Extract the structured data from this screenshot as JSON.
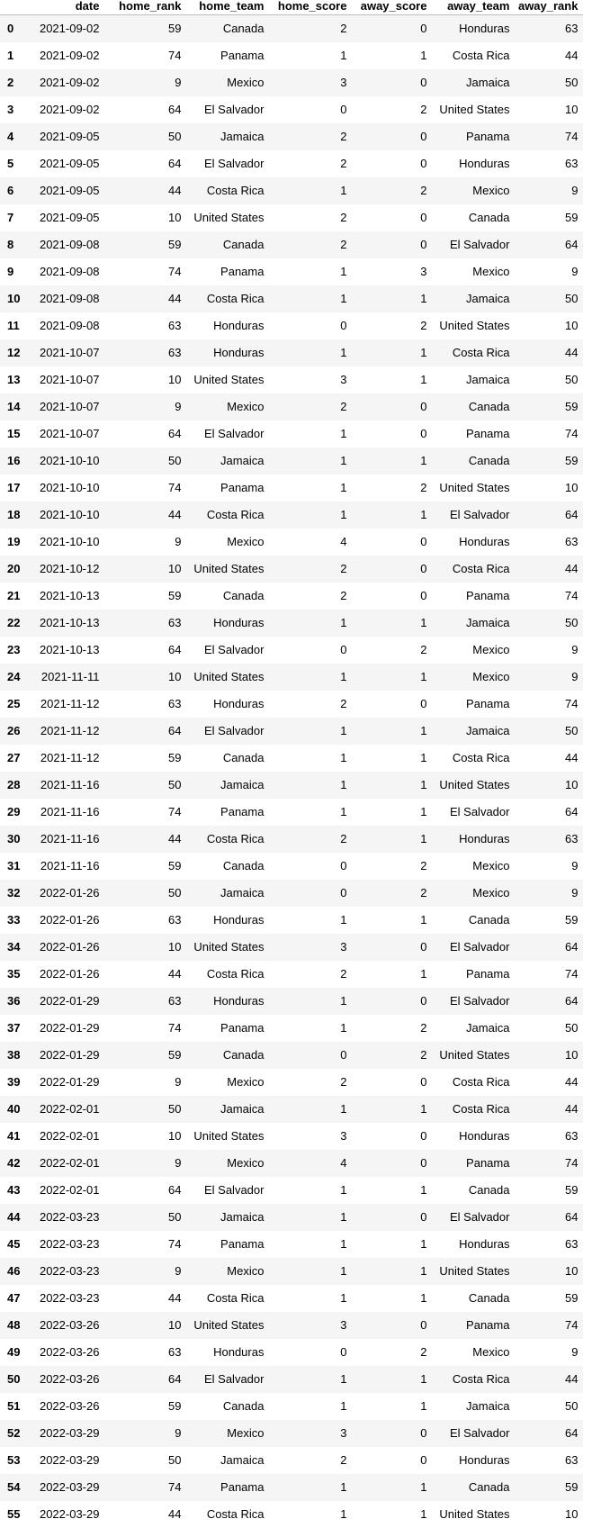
{
  "columns": [
    "date",
    "home_rank",
    "home_team",
    "home_score",
    "away_score",
    "away_team",
    "away_rank"
  ],
  "rows": [
    [
      "0",
      "2021-09-02",
      "59",
      "Canada",
      "2",
      "0",
      "Honduras",
      "63"
    ],
    [
      "1",
      "2021-09-02",
      "74",
      "Panama",
      "1",
      "1",
      "Costa Rica",
      "44"
    ],
    [
      "2",
      "2021-09-02",
      "9",
      "Mexico",
      "3",
      "0",
      "Jamaica",
      "50"
    ],
    [
      "3",
      "2021-09-02",
      "64",
      "El Salvador",
      "0",
      "2",
      "United States",
      "10"
    ],
    [
      "4",
      "2021-09-05",
      "50",
      "Jamaica",
      "2",
      "0",
      "Panama",
      "74"
    ],
    [
      "5",
      "2021-09-05",
      "64",
      "El Salvador",
      "2",
      "0",
      "Honduras",
      "63"
    ],
    [
      "6",
      "2021-09-05",
      "44",
      "Costa Rica",
      "1",
      "2",
      "Mexico",
      "9"
    ],
    [
      "7",
      "2021-09-05",
      "10",
      "United States",
      "2",
      "0",
      "Canada",
      "59"
    ],
    [
      "8",
      "2021-09-08",
      "59",
      "Canada",
      "2",
      "0",
      "El Salvador",
      "64"
    ],
    [
      "9",
      "2021-09-08",
      "74",
      "Panama",
      "1",
      "3",
      "Mexico",
      "9"
    ],
    [
      "10",
      "2021-09-08",
      "44",
      "Costa Rica",
      "1",
      "1",
      "Jamaica",
      "50"
    ],
    [
      "11",
      "2021-09-08",
      "63",
      "Honduras",
      "0",
      "2",
      "United States",
      "10"
    ],
    [
      "12",
      "2021-10-07",
      "63",
      "Honduras",
      "1",
      "1",
      "Costa Rica",
      "44"
    ],
    [
      "13",
      "2021-10-07",
      "10",
      "United States",
      "3",
      "1",
      "Jamaica",
      "50"
    ],
    [
      "14",
      "2021-10-07",
      "9",
      "Mexico",
      "2",
      "0",
      "Canada",
      "59"
    ],
    [
      "15",
      "2021-10-07",
      "64",
      "El Salvador",
      "1",
      "0",
      "Panama",
      "74"
    ],
    [
      "16",
      "2021-10-10",
      "50",
      "Jamaica",
      "1",
      "1",
      "Canada",
      "59"
    ],
    [
      "17",
      "2021-10-10",
      "74",
      "Panama",
      "1",
      "2",
      "United States",
      "10"
    ],
    [
      "18",
      "2021-10-10",
      "44",
      "Costa Rica",
      "1",
      "1",
      "El Salvador",
      "64"
    ],
    [
      "19",
      "2021-10-10",
      "9",
      "Mexico",
      "4",
      "0",
      "Honduras",
      "63"
    ],
    [
      "20",
      "2021-10-12",
      "10",
      "United States",
      "2",
      "0",
      "Costa Rica",
      "44"
    ],
    [
      "21",
      "2021-10-13",
      "59",
      "Canada",
      "2",
      "0",
      "Panama",
      "74"
    ],
    [
      "22",
      "2021-10-13",
      "63",
      "Honduras",
      "1",
      "1",
      "Jamaica",
      "50"
    ],
    [
      "23",
      "2021-10-13",
      "64",
      "El Salvador",
      "0",
      "2",
      "Mexico",
      "9"
    ],
    [
      "24",
      "2021-11-11",
      "10",
      "United States",
      "1",
      "1",
      "Mexico",
      "9"
    ],
    [
      "25",
      "2021-11-12",
      "63",
      "Honduras",
      "2",
      "0",
      "Panama",
      "74"
    ],
    [
      "26",
      "2021-11-12",
      "64",
      "El Salvador",
      "1",
      "1",
      "Jamaica",
      "50"
    ],
    [
      "27",
      "2021-11-12",
      "59",
      "Canada",
      "1",
      "1",
      "Costa Rica",
      "44"
    ],
    [
      "28",
      "2021-11-16",
      "50",
      "Jamaica",
      "1",
      "1",
      "United States",
      "10"
    ],
    [
      "29",
      "2021-11-16",
      "74",
      "Panama",
      "1",
      "1",
      "El Salvador",
      "64"
    ],
    [
      "30",
      "2021-11-16",
      "44",
      "Costa Rica",
      "2",
      "1",
      "Honduras",
      "63"
    ],
    [
      "31",
      "2021-11-16",
      "59",
      "Canada",
      "0",
      "2",
      "Mexico",
      "9"
    ],
    [
      "32",
      "2022-01-26",
      "50",
      "Jamaica",
      "0",
      "2",
      "Mexico",
      "9"
    ],
    [
      "33",
      "2022-01-26",
      "63",
      "Honduras",
      "1",
      "1",
      "Canada",
      "59"
    ],
    [
      "34",
      "2022-01-26",
      "10",
      "United States",
      "3",
      "0",
      "El Salvador",
      "64"
    ],
    [
      "35",
      "2022-01-26",
      "44",
      "Costa Rica",
      "2",
      "1",
      "Panama",
      "74"
    ],
    [
      "36",
      "2022-01-29",
      "63",
      "Honduras",
      "1",
      "0",
      "El Salvador",
      "64"
    ],
    [
      "37",
      "2022-01-29",
      "74",
      "Panama",
      "1",
      "2",
      "Jamaica",
      "50"
    ],
    [
      "38",
      "2022-01-29",
      "59",
      "Canada",
      "0",
      "2",
      "United States",
      "10"
    ],
    [
      "39",
      "2022-01-29",
      "9",
      "Mexico",
      "2",
      "0",
      "Costa Rica",
      "44"
    ],
    [
      "40",
      "2022-02-01",
      "50",
      "Jamaica",
      "1",
      "1",
      "Costa Rica",
      "44"
    ],
    [
      "41",
      "2022-02-01",
      "10",
      "United States",
      "3",
      "0",
      "Honduras",
      "63"
    ],
    [
      "42",
      "2022-02-01",
      "9",
      "Mexico",
      "4",
      "0",
      "Panama",
      "74"
    ],
    [
      "43",
      "2022-02-01",
      "64",
      "El Salvador",
      "1",
      "1",
      "Canada",
      "59"
    ],
    [
      "44",
      "2022-03-23",
      "50",
      "Jamaica",
      "1",
      "0",
      "El Salvador",
      "64"
    ],
    [
      "45",
      "2022-03-23",
      "74",
      "Panama",
      "1",
      "1",
      "Honduras",
      "63"
    ],
    [
      "46",
      "2022-03-23",
      "9",
      "Mexico",
      "1",
      "1",
      "United States",
      "10"
    ],
    [
      "47",
      "2022-03-23",
      "44",
      "Costa Rica",
      "1",
      "1",
      "Canada",
      "59"
    ],
    [
      "48",
      "2022-03-26",
      "10",
      "United States",
      "3",
      "0",
      "Panama",
      "74"
    ],
    [
      "49",
      "2022-03-26",
      "63",
      "Honduras",
      "0",
      "2",
      "Mexico",
      "9"
    ],
    [
      "50",
      "2022-03-26",
      "64",
      "El Salvador",
      "1",
      "1",
      "Costa Rica",
      "44"
    ],
    [
      "51",
      "2022-03-26",
      "59",
      "Canada",
      "1",
      "1",
      "Jamaica",
      "50"
    ],
    [
      "52",
      "2022-03-29",
      "9",
      "Mexico",
      "3",
      "0",
      "El Salvador",
      "64"
    ],
    [
      "53",
      "2022-03-29",
      "50",
      "Jamaica",
      "2",
      "0",
      "Honduras",
      "63"
    ],
    [
      "54",
      "2022-03-29",
      "74",
      "Panama",
      "1",
      "1",
      "Canada",
      "59"
    ],
    [
      "55",
      "2022-03-29",
      "44",
      "Costa Rica",
      "1",
      "1",
      "United States",
      "10"
    ]
  ]
}
